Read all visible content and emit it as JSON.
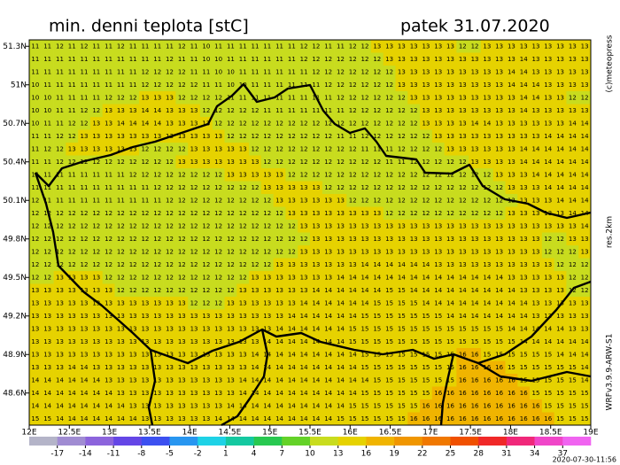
{
  "chart_data": {
    "type": "map",
    "title": "min. denni teplota [stC]",
    "date": "patek 31.07.2020",
    "xlim": [
      12,
      19
    ],
    "ylim": [
      48.35,
      51.35
    ],
    "xticks": [
      {
        "value": 12,
        "label": "12E"
      },
      {
        "value": 12.5,
        "label": "12.5E"
      },
      {
        "value": 13,
        "label": "13E"
      },
      {
        "value": 13.5,
        "label": "13.5E"
      },
      {
        "value": 14,
        "label": "14E"
      },
      {
        "value": 14.5,
        "label": "14.5E"
      },
      {
        "value": 15,
        "label": "15E"
      },
      {
        "value": 15.5,
        "label": "15.5E"
      },
      {
        "value": 16,
        "label": "16E"
      },
      {
        "value": 16.5,
        "label": "16.5E"
      },
      {
        "value": 17,
        "label": "17E"
      },
      {
        "value": 17.5,
        "label": "17.5E"
      },
      {
        "value": 18,
        "label": "18E"
      },
      {
        "value": 18.5,
        "label": "18.5E"
      },
      {
        "value": 19,
        "label": "19E"
      }
    ],
    "yticks": [
      {
        "value": 48.6,
        "label": "48.6N"
      },
      {
        "value": 48.9,
        "label": "48.9N"
      },
      {
        "value": 49.2,
        "label": "49.2N"
      },
      {
        "value": 49.5,
        "label": "49.5N"
      },
      {
        "value": 49.8,
        "label": "49.8N"
      },
      {
        "value": 50.1,
        "label": "50.1N"
      },
      {
        "value": 50.4,
        "label": "50.4N"
      },
      {
        "value": 50.7,
        "label": "50.7N"
      },
      {
        "value": 51,
        "label": "51N"
      },
      {
        "value": 51.3,
        "label": "51.3N"
      }
    ],
    "values": [
      [
        11,
        11,
        12,
        11,
        12,
        11,
        11,
        12,
        11,
        11,
        11,
        11,
        12,
        11,
        10,
        11,
        11,
        11,
        11,
        11,
        11,
        11,
        12,
        12,
        11,
        11,
        12,
        12,
        13,
        13,
        13,
        13,
        13,
        13,
        13,
        12,
        12,
        13,
        13,
        13,
        13,
        13,
        13,
        13,
        13,
        13
      ],
      [
        11,
        11,
        11,
        11,
        11,
        11,
        11,
        11,
        11,
        11,
        11,
        12,
        11,
        11,
        10,
        10,
        11,
        11,
        11,
        11,
        11,
        11,
        12,
        12,
        12,
        12,
        12,
        12,
        12,
        13,
        13,
        13,
        13,
        13,
        13,
        13,
        13,
        13,
        13,
        13,
        14,
        13,
        13,
        13,
        13,
        13
      ],
      [
        11,
        11,
        11,
        11,
        11,
        11,
        11,
        11,
        11,
        12,
        12,
        12,
        12,
        11,
        11,
        10,
        10,
        11,
        11,
        11,
        11,
        11,
        11,
        12,
        12,
        12,
        12,
        12,
        12,
        12,
        13,
        13,
        13,
        13,
        13,
        13,
        13,
        13,
        13,
        14,
        14,
        13,
        13,
        13,
        13,
        13
      ],
      [
        10,
        11,
        11,
        11,
        11,
        11,
        11,
        11,
        11,
        12,
        12,
        12,
        12,
        12,
        11,
        11,
        10,
        10,
        11,
        11,
        11,
        11,
        11,
        11,
        12,
        12,
        12,
        12,
        12,
        12,
        13,
        13,
        13,
        13,
        13,
        13,
        13,
        13,
        13,
        14,
        14,
        14,
        13,
        13,
        13,
        13
      ],
      [
        10,
        10,
        11,
        11,
        11,
        11,
        12,
        12,
        12,
        13,
        13,
        13,
        12,
        12,
        12,
        12,
        11,
        11,
        11,
        11,
        11,
        11,
        11,
        11,
        11,
        12,
        12,
        12,
        12,
        12,
        12,
        13,
        13,
        13,
        13,
        13,
        13,
        13,
        13,
        13,
        14,
        14,
        13,
        13,
        12,
        12
      ],
      [
        10,
        10,
        11,
        11,
        12,
        12,
        13,
        13,
        13,
        14,
        14,
        13,
        13,
        13,
        12,
        12,
        12,
        12,
        12,
        11,
        11,
        11,
        11,
        11,
        11,
        11,
        12,
        12,
        12,
        12,
        12,
        12,
        13,
        13,
        13,
        13,
        13,
        13,
        13,
        13,
        14,
        13,
        13,
        13,
        13,
        13
      ],
      [
        10,
        11,
        11,
        12,
        12,
        13,
        13,
        14,
        14,
        14,
        14,
        13,
        13,
        13,
        13,
        12,
        12,
        12,
        12,
        12,
        12,
        12,
        12,
        12,
        12,
        12,
        12,
        12,
        12,
        12,
        12,
        12,
        13,
        13,
        13,
        13,
        14,
        14,
        13,
        13,
        13,
        13,
        13,
        13,
        14,
        14
      ],
      [
        11,
        11,
        12,
        12,
        13,
        13,
        13,
        13,
        13,
        13,
        13,
        13,
        13,
        13,
        13,
        13,
        12,
        12,
        12,
        12,
        12,
        12,
        12,
        12,
        12,
        11,
        11,
        12,
        12,
        12,
        12,
        12,
        12,
        13,
        13,
        13,
        13,
        13,
        13,
        13,
        13,
        13,
        14,
        14,
        14,
        14
      ],
      [
        11,
        12,
        12,
        13,
        13,
        13,
        13,
        13,
        13,
        12,
        12,
        12,
        12,
        13,
        13,
        13,
        13,
        13,
        12,
        12,
        12,
        12,
        12,
        12,
        12,
        12,
        12,
        11,
        11,
        11,
        12,
        12,
        12,
        12,
        13,
        13,
        13,
        13,
        13,
        13,
        14,
        14,
        14,
        14,
        14,
        14
      ],
      [
        11,
        11,
        12,
        12,
        12,
        12,
        12,
        12,
        12,
        12,
        12,
        12,
        13,
        13,
        13,
        13,
        13,
        13,
        13,
        12,
        12,
        12,
        12,
        12,
        12,
        12,
        12,
        12,
        12,
        11,
        11,
        12,
        12,
        12,
        12,
        12,
        13,
        13,
        13,
        13,
        14,
        14,
        14,
        14,
        14,
        14
      ],
      [
        11,
        11,
        11,
        11,
        11,
        11,
        11,
        11,
        12,
        12,
        12,
        12,
        12,
        12,
        12,
        12,
        13,
        13,
        13,
        13,
        13,
        12,
        12,
        12,
        12,
        12,
        12,
        12,
        12,
        12,
        12,
        12,
        12,
        12,
        12,
        12,
        12,
        12,
        13,
        13,
        13,
        14,
        14,
        14,
        14,
        14
      ],
      [
        11,
        11,
        11,
        11,
        11,
        11,
        11,
        11,
        11,
        11,
        12,
        12,
        12,
        12,
        12,
        12,
        12,
        12,
        12,
        13,
        13,
        13,
        13,
        13,
        12,
        12,
        12,
        12,
        12,
        12,
        12,
        12,
        12,
        12,
        12,
        12,
        12,
        12,
        12,
        13,
        13,
        13,
        14,
        14,
        14,
        14
      ],
      [
        12,
        11,
        11,
        11,
        11,
        11,
        11,
        11,
        11,
        11,
        11,
        12,
        12,
        12,
        12,
        12,
        12,
        12,
        12,
        12,
        13,
        13,
        13,
        13,
        13,
        13,
        12,
        12,
        12,
        12,
        12,
        12,
        12,
        12,
        12,
        12,
        12,
        12,
        12,
        12,
        13,
        13,
        13,
        14,
        14,
        14
      ],
      [
        12,
        12,
        12,
        12,
        12,
        12,
        12,
        12,
        12,
        12,
        12,
        12,
        12,
        12,
        12,
        12,
        12,
        12,
        12,
        12,
        12,
        13,
        13,
        13,
        13,
        13,
        13,
        13,
        13,
        12,
        12,
        12,
        12,
        12,
        12,
        12,
        12,
        12,
        12,
        13,
        13,
        13,
        13,
        13,
        14,
        14
      ],
      [
        12,
        12,
        12,
        12,
        12,
        12,
        12,
        12,
        12,
        12,
        12,
        12,
        12,
        12,
        12,
        12,
        12,
        12,
        12,
        12,
        12,
        12,
        13,
        13,
        13,
        13,
        13,
        13,
        13,
        13,
        13,
        13,
        13,
        13,
        13,
        13,
        13,
        13,
        13,
        13,
        13,
        13,
        13,
        13,
        13,
        14
      ],
      [
        12,
        12,
        12,
        12,
        12,
        12,
        12,
        12,
        12,
        12,
        12,
        12,
        12,
        12,
        12,
        12,
        12,
        12,
        12,
        12,
        12,
        12,
        12,
        13,
        13,
        13,
        13,
        13,
        13,
        13,
        13,
        13,
        13,
        13,
        13,
        13,
        13,
        13,
        13,
        13,
        13,
        13,
        12,
        12,
        13,
        13
      ],
      [
        12,
        12,
        12,
        12,
        12,
        12,
        12,
        12,
        12,
        12,
        12,
        12,
        12,
        12,
        12,
        12,
        12,
        12,
        12,
        12,
        12,
        12,
        13,
        13,
        13,
        13,
        13,
        13,
        13,
        13,
        13,
        13,
        13,
        13,
        13,
        13,
        13,
        13,
        13,
        13,
        13,
        13,
        12,
        12,
        12,
        13
      ],
      [
        12,
        12,
        12,
        12,
        12,
        12,
        12,
        12,
        12,
        12,
        12,
        12,
        12,
        12,
        12,
        12,
        12,
        12,
        12,
        12,
        13,
        13,
        13,
        13,
        13,
        13,
        13,
        14,
        14,
        14,
        14,
        14,
        14,
        13,
        13,
        13,
        13,
        13,
        13,
        13,
        13,
        13,
        13,
        12,
        12,
        12
      ],
      [
        12,
        12,
        13,
        13,
        13,
        13,
        12,
        12,
        12,
        12,
        12,
        12,
        12,
        12,
        12,
        12,
        12,
        12,
        13,
        13,
        13,
        13,
        13,
        13,
        13,
        14,
        14,
        14,
        14,
        14,
        14,
        14,
        14,
        14,
        14,
        14,
        14,
        14,
        14,
        13,
        13,
        13,
        13,
        13,
        12,
        12
      ],
      [
        13,
        13,
        13,
        13,
        13,
        13,
        13,
        12,
        12,
        12,
        12,
        12,
        12,
        12,
        12,
        12,
        12,
        13,
        13,
        13,
        13,
        13,
        13,
        14,
        14,
        14,
        14,
        14,
        14,
        15,
        15,
        14,
        14,
        14,
        14,
        14,
        14,
        14,
        14,
        14,
        13,
        13,
        13,
        13,
        12,
        12
      ],
      [
        13,
        13,
        13,
        13,
        13,
        13,
        13,
        13,
        13,
        13,
        13,
        13,
        13,
        12,
        12,
        12,
        13,
        13,
        13,
        13,
        13,
        13,
        14,
        14,
        14,
        14,
        14,
        14,
        15,
        15,
        15,
        15,
        14,
        14,
        14,
        14,
        14,
        14,
        14,
        14,
        14,
        13,
        13,
        13,
        13,
        13
      ],
      [
        13,
        13,
        13,
        13,
        13,
        13,
        13,
        13,
        13,
        13,
        13,
        13,
        13,
        13,
        13,
        13,
        13,
        13,
        13,
        13,
        13,
        14,
        14,
        14,
        14,
        14,
        14,
        15,
        15,
        15,
        15,
        15,
        15,
        15,
        14,
        14,
        14,
        14,
        14,
        14,
        14,
        13,
        13,
        13,
        13,
        13
      ],
      [
        13,
        13,
        13,
        13,
        13,
        13,
        13,
        13,
        13,
        13,
        13,
        13,
        13,
        13,
        13,
        13,
        13,
        13,
        13,
        13,
        14,
        14,
        14,
        14,
        14,
        14,
        15,
        15,
        15,
        15,
        15,
        15,
        15,
        15,
        15,
        15,
        15,
        15,
        15,
        14,
        14,
        14,
        14,
        14,
        13,
        13
      ],
      [
        13,
        13,
        13,
        13,
        13,
        13,
        13,
        13,
        13,
        13,
        13,
        13,
        13,
        13,
        13,
        13,
        13,
        13,
        13,
        14,
        14,
        14,
        14,
        14,
        14,
        14,
        15,
        15,
        15,
        15,
        15,
        15,
        15,
        15,
        15,
        15,
        15,
        15,
        15,
        15,
        14,
        14,
        14,
        14,
        14,
        14
      ],
      [
        13,
        13,
        13,
        13,
        13,
        13,
        13,
        13,
        13,
        13,
        13,
        13,
        13,
        13,
        13,
        13,
        13,
        13,
        14,
        14,
        14,
        14,
        14,
        14,
        14,
        14,
        14,
        15,
        15,
        15,
        15,
        15,
        15,
        15,
        15,
        16,
        16,
        15,
        15,
        15,
        15,
        15,
        15,
        14,
        14,
        14
      ],
      [
        13,
        13,
        13,
        14,
        14,
        13,
        13,
        13,
        13,
        13,
        13,
        13,
        13,
        13,
        13,
        13,
        13,
        13,
        14,
        14,
        14,
        14,
        14,
        14,
        14,
        14,
        14,
        15,
        15,
        15,
        15,
        15,
        15,
        15,
        15,
        16,
        16,
        16,
        16,
        15,
        15,
        15,
        15,
        15,
        15,
        14
      ],
      [
        14,
        14,
        14,
        14,
        14,
        14,
        13,
        13,
        13,
        13,
        13,
        13,
        13,
        13,
        13,
        13,
        13,
        14,
        14,
        14,
        14,
        14,
        14,
        14,
        14,
        14,
        14,
        14,
        15,
        15,
        15,
        15,
        15,
        15,
        15,
        16,
        16,
        16,
        16,
        16,
        15,
        15,
        15,
        15,
        15,
        14
      ],
      [
        14,
        14,
        14,
        14,
        14,
        14,
        14,
        13,
        13,
        13,
        13,
        13,
        13,
        13,
        13,
        13,
        13,
        14,
        14,
        14,
        14,
        14,
        14,
        14,
        14,
        14,
        14,
        15,
        15,
        15,
        15,
        15,
        15,
        16,
        16,
        16,
        16,
        16,
        16,
        16,
        16,
        15,
        15,
        15,
        15,
        15
      ],
      [
        14,
        14,
        14,
        14,
        14,
        14,
        14,
        14,
        13,
        13,
        13,
        13,
        13,
        13,
        13,
        13,
        14,
        14,
        14,
        14,
        14,
        14,
        14,
        14,
        14,
        14,
        15,
        15,
        15,
        15,
        15,
        15,
        16,
        16,
        16,
        16,
        16,
        16,
        16,
        16,
        16,
        16,
        15,
        15,
        15,
        15
      ],
      [
        15,
        15,
        14,
        14,
        14,
        14,
        14,
        14,
        14,
        13,
        13,
        13,
        13,
        13,
        13,
        14,
        14,
        14,
        14,
        14,
        14,
        14,
        14,
        14,
        14,
        15,
        15,
        15,
        15,
        15,
        15,
        16,
        16,
        16,
        16,
        16,
        16,
        16,
        16,
        16,
        16,
        16,
        16,
        15,
        15,
        15
      ]
    ],
    "colorbar": {
      "ticks": [
        -17,
        -14,
        -11,
        -8,
        -5,
        -2,
        1,
        4,
        7,
        10,
        13,
        16,
        19,
        22,
        25,
        28,
        31,
        34,
        37
      ],
      "colors": [
        "#b4b4c8",
        "#a08cd2",
        "#8c64dc",
        "#6446e6",
        "#3c50f0",
        "#2896f0",
        "#1ed2e6",
        "#14c8a0",
        "#28c850",
        "#64d228",
        "#c8dc1e",
        "#e6d200",
        "#f0b400",
        "#f09600",
        "#f07800",
        "#f05000",
        "#f02828",
        "#f0287a",
        "#f046c8",
        "#f064f0"
      ]
    },
    "credits": [
      "(c)meteopress",
      "res.2km",
      "WRFv3.9.9-ARW-S1"
    ],
    "timestamp": "2020-07-30-11:56"
  }
}
